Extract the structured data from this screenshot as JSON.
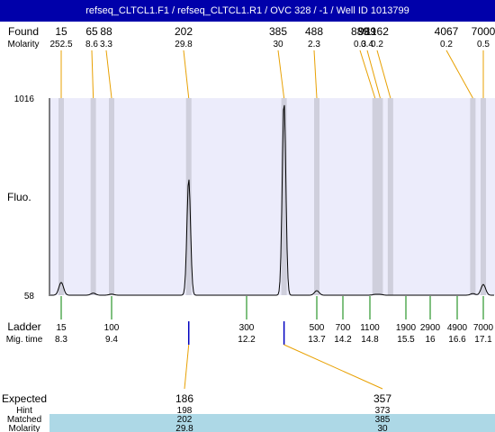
{
  "title": "refseq_CLTCL1.F1 / refseq_CLTCL1.R1 / OVC 328 / -1 / Well ID 1013799",
  "labels": {
    "found": "Found",
    "molarity": "Molarity",
    "fluo": "Fluo.",
    "ladder": "Ladder",
    "mig_time": "Mig. time",
    "expected": "Expected",
    "hint": "Hint",
    "matched": "Matched",
    "molarity_bottom": "Molarity"
  },
  "colors": {
    "title_bg": "#0000aa",
    "plot_bg": "#ececfb",
    "band": "#cfcfdc",
    "ladder_tick": "#008000",
    "expected_tick": "#0000c0",
    "connector": "#e8a000",
    "table_band": "#add8e6"
  },
  "chart_data": {
    "type": "line",
    "y_axis": {
      "max_label": "1016",
      "min_label": "58",
      "range": [
        58,
        1016
      ]
    },
    "found_peaks": [
      {
        "size": "15",
        "molarity": "252.5",
        "time": 8.3
      },
      {
        "size": "65",
        "molarity": "8.6",
        "time": 9.0
      },
      {
        "size": "88",
        "molarity": "3.3",
        "time": 9.4
      },
      {
        "size": "202",
        "molarity": "29.8",
        "time": 11.0
      },
      {
        "size": "385",
        "molarity": "30",
        "time": 13.0
      },
      {
        "size": "488",
        "molarity": "2.3",
        "time": 13.7
      },
      {
        "size": "889",
        "molarity": "0.3",
        "time": 14.9
      },
      {
        "size": "989",
        "molarity": "0.4",
        "time": 15.0
      },
      {
        "size": "1162",
        "molarity": "0.2",
        "time": 15.2
      },
      {
        "size": "4067",
        "molarity": "0.2",
        "time": 16.9
      },
      {
        "size": "7000",
        "molarity": "0.5",
        "time": 17.1
      }
    ],
    "ladder": [
      {
        "size": "15",
        "time": "8.3"
      },
      {
        "size": "100",
        "time": "9.4"
      },
      {
        "size": "300",
        "time": "12.2"
      },
      {
        "size": "500",
        "time": "13.7"
      },
      {
        "size": "700",
        "time": "14.2"
      },
      {
        "size": "1100",
        "time": "14.8"
      },
      {
        "size": "1900",
        "time": "15.5"
      },
      {
        "size": "2900",
        "time": "16"
      },
      {
        "size": "4900",
        "time": "16.6"
      },
      {
        "size": "7000",
        "time": "17.1"
      }
    ],
    "expected": [
      {
        "expected": "186",
        "hint": "198",
        "matched": "202",
        "molarity": "29.8",
        "time": 11.0
      },
      {
        "expected": "357",
        "hint": "373",
        "matched": "385",
        "molarity": "30",
        "time": 13.0
      }
    ],
    "trace_peaks": [
      {
        "time": 8.3,
        "height": 120
      },
      {
        "time": 9.0,
        "height": 68
      },
      {
        "time": 9.4,
        "height": 63
      },
      {
        "time": 11.0,
        "height": 625
      },
      {
        "time": 13.0,
        "height": 1000
      },
      {
        "time": 13.7,
        "height": 80
      },
      {
        "time": 14.9,
        "height": 62
      },
      {
        "time": 15.0,
        "height": 62
      },
      {
        "time": 16.9,
        "height": 66
      },
      {
        "time": 17.1,
        "height": 110
      }
    ],
    "baseline": 58
  }
}
